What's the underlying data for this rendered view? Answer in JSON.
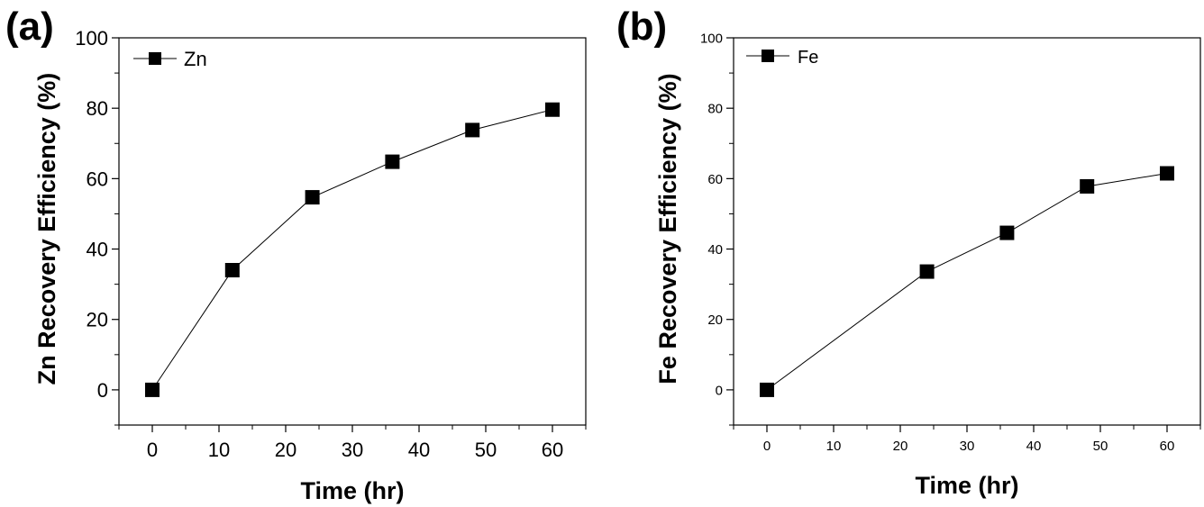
{
  "chart_data": [
    {
      "type": "line",
      "panel_label": "(a)",
      "xlabel": "Time (hr)",
      "ylabel": "Zn Recovery Efficiency (%)",
      "xlim": [
        -5,
        65
      ],
      "ylim": [
        -10,
        100
      ],
      "xticks": [
        0,
        10,
        20,
        30,
        40,
        50,
        60
      ],
      "yticks": [
        0,
        20,
        40,
        60,
        80,
        100
      ],
      "legend_position": "top-left",
      "series": [
        {
          "name": "Zn",
          "marker": "square",
          "color": "#000000",
          "x": [
            0,
            12,
            24,
            36,
            48,
            60
          ],
          "y": [
            0,
            34,
            54.7,
            64.8,
            73.8,
            79.6
          ]
        }
      ]
    },
    {
      "type": "line",
      "panel_label": "(b)",
      "xlabel": "Time (hr)",
      "ylabel": "Fe Recovery Efficiency (%)",
      "xlim": [
        -5,
        65
      ],
      "ylim": [
        -10,
        100
      ],
      "xticks": [
        0,
        10,
        20,
        30,
        40,
        50,
        60
      ],
      "yticks": [
        0,
        20,
        40,
        60,
        80,
        100
      ],
      "legend_position": "top-left",
      "series": [
        {
          "name": "Fe",
          "marker": "square",
          "color": "#000000",
          "x": [
            0,
            24,
            36,
            48,
            60
          ],
          "y": [
            0,
            33.6,
            44.6,
            57.8,
            61.5
          ]
        }
      ]
    }
  ]
}
